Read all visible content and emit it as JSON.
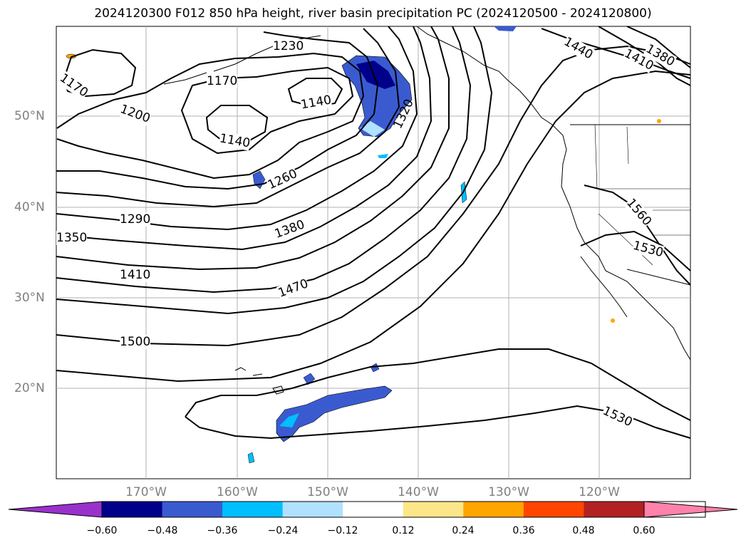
{
  "title": "2024120300 F012 850 hPa height, river basin precipitation PC (2024120500 - 2024120800)",
  "lat_labels": [
    "50°N",
    "40°N",
    "30°N",
    "20°N"
  ],
  "lon_labels": [
    "170°W",
    "160°W",
    "150°W",
    "140°W",
    "130°W",
    "120°W"
  ],
  "contour_labels": [
    "1170",
    "1200",
    "1260",
    "1290",
    "1350",
    "1410",
    "1500",
    "1380",
    "1470",
    "1170",
    "1140",
    "1140",
    "1320",
    "1230",
    "1440",
    "1410",
    "1380",
    "1560",
    "1530",
    "1530"
  ],
  "colorbar": {
    "ticks": [
      "−0.60",
      "−0.48",
      "−0.36",
      "−0.24",
      "−0.12",
      "0.12",
      "0.24",
      "0.36",
      "0.48",
      "0.60"
    ],
    "colors": [
      "#9932cc",
      "#00008b",
      "#3a5bd0",
      "#00bfff",
      "#b0e2ff",
      "#ffffff",
      "#fde68a",
      "#ffa500",
      "#ff4500",
      "#b22222",
      "#ff82ab"
    ]
  },
  "map_colors": {
    "land_outline": "#000000",
    "grid": "#b0b0b0",
    "contour": "#000000"
  }
}
